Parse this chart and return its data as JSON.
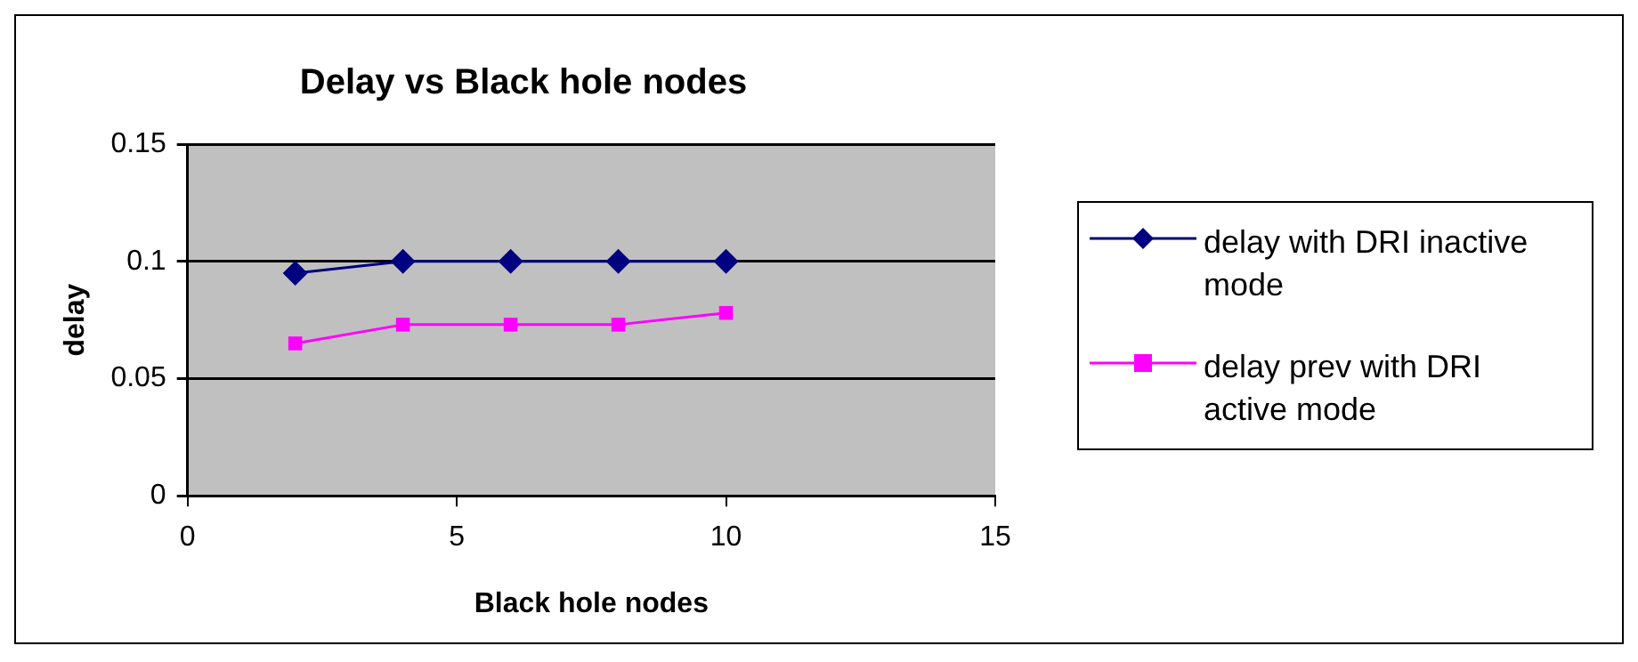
{
  "chart_data": {
    "type": "line",
    "title": "Delay vs Black hole nodes",
    "xlabel": "Black hole nodes",
    "ylabel": "delay",
    "x": [
      2,
      4,
      6,
      8,
      10
    ],
    "series": [
      {
        "name": "delay with DRI inactive mode",
        "color": "#000080",
        "marker": "diamond",
        "values": [
          0.095,
          0.1,
          0.1,
          0.1,
          0.1
        ]
      },
      {
        "name": "delay prev with DRI active mode",
        "color": "#ff00ff",
        "marker": "square",
        "values": [
          0.065,
          0.073,
          0.073,
          0.073,
          0.078
        ]
      }
    ],
    "xlim": [
      0,
      15
    ],
    "xticks": [
      0,
      5,
      10,
      15
    ],
    "ylim": [
      0,
      0.15
    ],
    "yticks": [
      0,
      0.05,
      0.1,
      0.15
    ],
    "grid": "y",
    "legend": "right",
    "line_style": "solid"
  }
}
